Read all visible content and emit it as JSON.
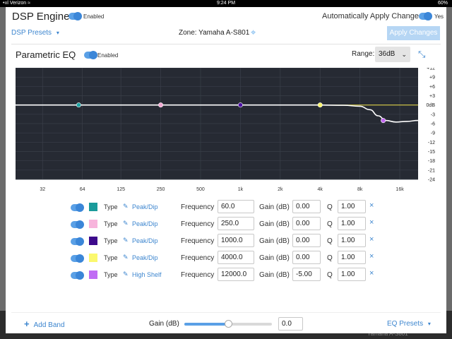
{
  "status_bar": {
    "carrier": "•ııl Verizon ≈",
    "time": "9:24 PM",
    "battery": "60%"
  },
  "underlay": {
    "peek_text": "Yamaha A-S801"
  },
  "header": {
    "title": "DSP Engine",
    "enabled_label": "Enabled",
    "auto_apply_label": "Automatically Apply Changes",
    "auto_apply_value": "Yes",
    "presets_label": "DSP Presets",
    "presets_caret": "▾",
    "zone_label": "Zone: Yamaha A-S801",
    "apply_label": "Apply Changes"
  },
  "eq": {
    "title": "Parametric EQ",
    "enabled_label": "Enabled",
    "range_label": "Range:",
    "range_value": "36dB",
    "range_caret": "⌄"
  },
  "chart_data": {
    "type": "line",
    "title": "",
    "x_scale": "log",
    "xlim": [
      20,
      22000
    ],
    "ylim": [
      -24,
      12
    ],
    "x_ticks": [
      32,
      64,
      125,
      250,
      500,
      1000,
      2000,
      4000,
      8000,
      16000
    ],
    "x_tick_labels": [
      "32",
      "64",
      "125",
      "250",
      "500",
      "1k",
      "2k",
      "4k",
      "8k",
      "16k"
    ],
    "y_ticks": [
      12,
      9,
      6,
      3,
      0,
      -3,
      -6,
      -9,
      -12,
      -15,
      -18,
      -21,
      -24
    ],
    "y_tick_labels": [
      "+12",
      "+9",
      "+6",
      "+3",
      "0dB",
      "-3",
      "-6",
      "-9",
      "-12",
      "-15",
      "-18",
      "-21",
      "-24"
    ],
    "grid": true,
    "background": "#262a33",
    "response_color": "#ffffff",
    "shelf_color": "#f2e44a",
    "response_curve": [
      {
        "x": 20,
        "y": 0
      },
      {
        "x": 4000,
        "y": 0
      },
      {
        "x": 6000,
        "y": -0.1
      },
      {
        "x": 8000,
        "y": -0.4
      },
      {
        "x": 9500,
        "y": -1.5
      },
      {
        "x": 11000,
        "y": -3.5
      },
      {
        "x": 12500,
        "y": -5
      },
      {
        "x": 15000,
        "y": -5.5
      },
      {
        "x": 18000,
        "y": -5.3
      },
      {
        "x": 22000,
        "y": -5
      }
    ],
    "shelf_curve": [
      {
        "x": 4000,
        "y": 0
      },
      {
        "x": 22000,
        "y": 0
      }
    ],
    "points": [
      {
        "x": 60,
        "y": 0,
        "color": "#1fa3a3"
      },
      {
        "x": 250,
        "y": 0,
        "color": "#f4a9d4"
      },
      {
        "x": 1000,
        "y": 0,
        "color": "#4b0fa3"
      },
      {
        "x": 4000,
        "y": 0,
        "color": "#f9f46b"
      },
      {
        "x": 12000,
        "y": -5,
        "color": "#c266f2"
      }
    ]
  },
  "bands": [
    {
      "color": "#1a9b9b",
      "type_label": "Type",
      "type": "Peak/Dip",
      "freq_label": "Frequency",
      "frequency": "60.0",
      "gain_label": "Gain (dB)",
      "gain": "0.00",
      "q_label": "Q",
      "q": "1.00",
      "remove": "×"
    },
    {
      "color": "#f7b4dc",
      "type_label": "Type",
      "type": "Peak/Dip",
      "freq_label": "Frequency",
      "frequency": "250.0",
      "gain_label": "Gain (dB)",
      "gain": "0.00",
      "q_label": "Q",
      "q": "1.00",
      "remove": "×"
    },
    {
      "color": "#3d0a8c",
      "type_label": "Type",
      "type": "Peak/Dip",
      "freq_label": "Frequency",
      "frequency": "1000.0",
      "gain_label": "Gain (dB)",
      "gain": "0.00",
      "q_label": "Q",
      "q": "1.00",
      "remove": "×"
    },
    {
      "color": "#fbf86e",
      "type_label": "Type",
      "type": "Peak/Dip",
      "freq_label": "Frequency",
      "frequency": "4000.0",
      "gain_label": "Gain (dB)",
      "gain": "0.00",
      "q_label": "Q",
      "q": "1.00",
      "remove": "×"
    },
    {
      "color": "#c06cf4",
      "type_label": "Type",
      "type": "High Shelf",
      "freq_label": "Frequency",
      "frequency": "12000.0",
      "gain_label": "Gain (dB)",
      "gain": "-5.00",
      "q_label": "Q",
      "q": "1.00",
      "remove": "×"
    }
  ],
  "footer": {
    "add_band_icon": "+",
    "add_band_label": "Add Band",
    "gain_label": "Gain (dB)",
    "gain_value": "0.0",
    "gain_slider_fraction": 0.5,
    "eq_presets_label": "EQ Presets",
    "eq_presets_caret": "▾"
  }
}
